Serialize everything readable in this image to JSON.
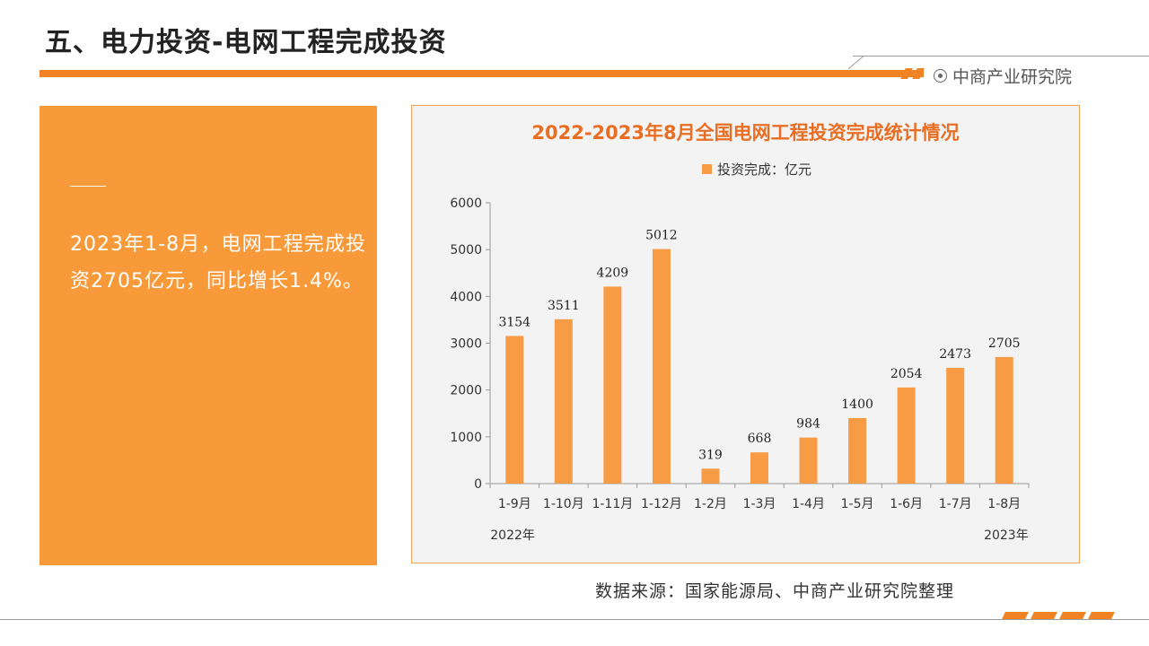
{
  "page": {
    "title": "五、电力投资-电网工程完成投资",
    "brand": "中商产业研究院",
    "brand_icon": "target-circle-icon",
    "accent_color": "#f08424"
  },
  "panel": {
    "text": "2023年1-8月，电网工程完成投资2705亿元，同比增长1.4%。",
    "background_color": "#f99a3a"
  },
  "chart_data": {
    "type": "bar",
    "title": "2022-2023年8月全国电网工程投资完成统计情况",
    "categories": [
      "1-9月",
      "1-10月",
      "1-11月",
      "1-12月",
      "1-2月",
      "1-3月",
      "1-4月",
      "1-5月",
      "1-6月",
      "1-7月",
      "1-8月"
    ],
    "series": [
      {
        "name": "投资完成：亿元",
        "values": [
          3154,
          3511,
          4209,
          5012,
          319,
          668,
          984,
          1400,
          2054,
          2473,
          2705
        ],
        "color": "#f79c45"
      }
    ],
    "year_labels": [
      "2022年",
      "2023年"
    ],
    "ylim": [
      0,
      6000
    ],
    "yticks": [
      0,
      1000,
      2000,
      3000,
      4000,
      5000,
      6000
    ],
    "grid": false,
    "legend_position": "top"
  },
  "source": "数据来源：国家能源局、中商产业研究院整理"
}
